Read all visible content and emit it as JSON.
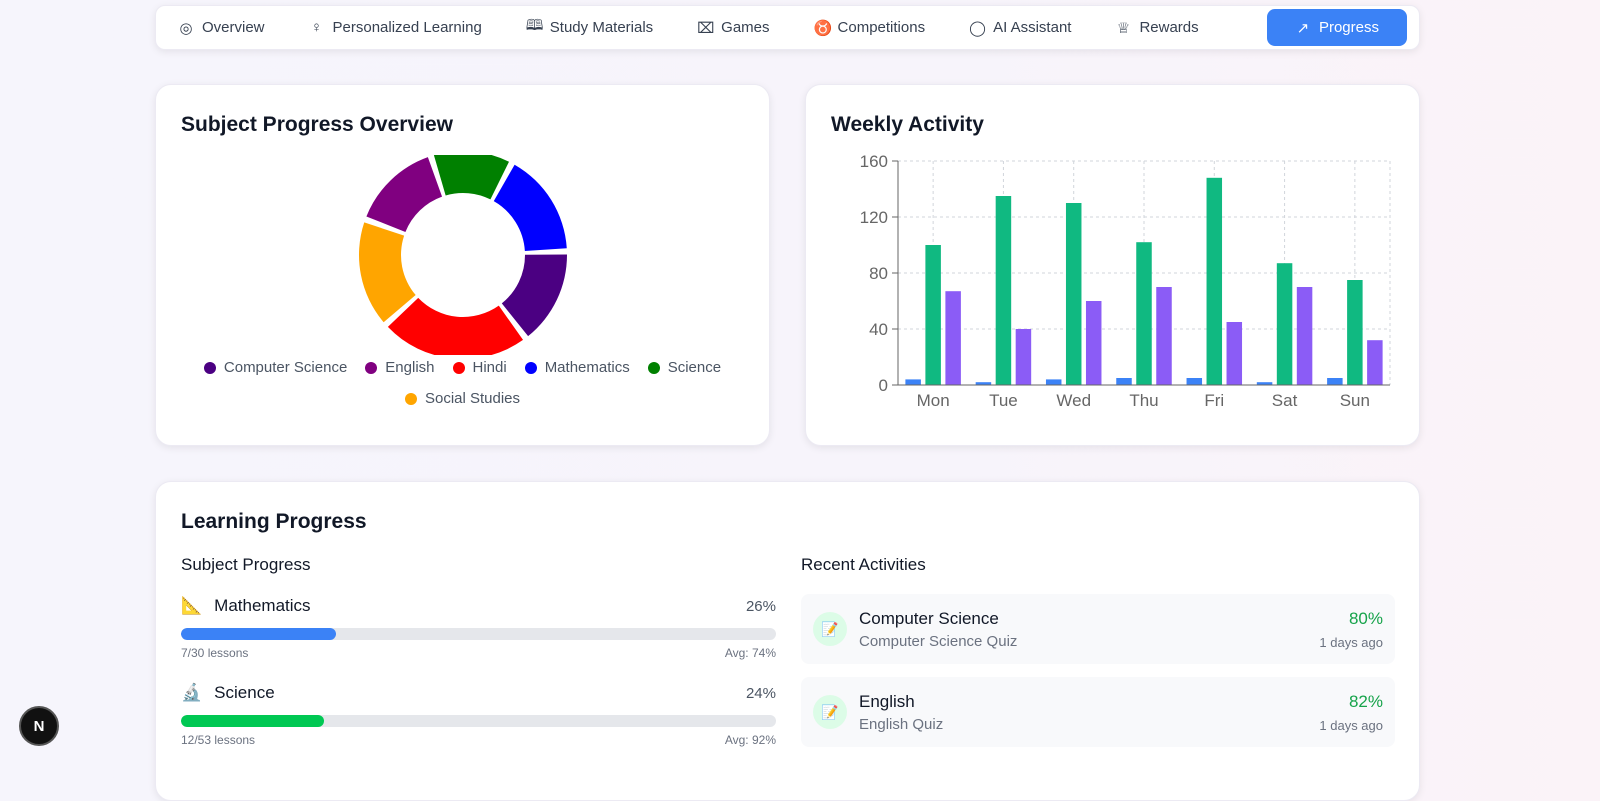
{
  "nav": {
    "tabs": [
      {
        "label": "Overview",
        "icon": "target-icon",
        "glyph": "◎"
      },
      {
        "label": "Personalized Learning",
        "icon": "lightbulb-icon",
        "glyph": "♀"
      },
      {
        "label": "Study Materials",
        "icon": "book-open-icon",
        "glyph": "🕮"
      },
      {
        "label": "Games",
        "icon": "gamepad-icon",
        "glyph": "⌧"
      },
      {
        "label": "Competitions",
        "icon": "medal-icon",
        "glyph": "♉"
      },
      {
        "label": "AI Assistant",
        "icon": "message-circle-icon",
        "glyph": "◯"
      },
      {
        "label": "Rewards",
        "icon": "trophy-icon",
        "glyph": "♕"
      },
      {
        "label": "Progress",
        "icon": "trending-up-icon",
        "glyph": "↗"
      }
    ]
  },
  "subject_overview": {
    "title": "Subject Progress Overview"
  },
  "weekly": {
    "title": "Weekly Activity"
  },
  "chart_data": [
    {
      "type": "pie",
      "title": "Subject Progress Overview",
      "donut": true,
      "slices": [
        {
          "name": "Mathematics",
          "value": 60,
          "color": "#0000ff"
        },
        {
          "name": "Computer Science",
          "value": 55,
          "color": "#4b0082"
        },
        {
          "name": "Hindi",
          "value": 85,
          "color": "#ff0000"
        },
        {
          "name": "Social Studies",
          "value": 62,
          "color": "#ffa500"
        },
        {
          "name": "English",
          "value": 52,
          "color": "#800080"
        },
        {
          "name": "Science",
          "value": 46,
          "color": "#008000"
        }
      ],
      "legend": [
        "Computer Science",
        "English",
        "Hindi",
        "Mathematics",
        "Science",
        "Social Studies"
      ],
      "legend_colors": [
        "#4b0082",
        "#800080",
        "#ff0000",
        "#0000ff",
        "#008000",
        "#ffa500"
      ],
      "legend_placement": "bottom"
    },
    {
      "type": "bar",
      "title": "Weekly Activity",
      "categories": [
        "Mon",
        "Tue",
        "Wed",
        "Thu",
        "Fri",
        "Sat",
        "Sun"
      ],
      "series": [
        {
          "color": "#3b82f6",
          "values": [
            4,
            2,
            4,
            5,
            5,
            2,
            5
          ]
        },
        {
          "color": "#10b981",
          "values": [
            100,
            135,
            130,
            102,
            148,
            87,
            75
          ]
        },
        {
          "color": "#8b5cf6",
          "values": [
            67,
            40,
            60,
            70,
            45,
            70,
            32
          ]
        }
      ],
      "ylim": [
        0,
        160
      ],
      "yticks": [
        "0",
        "40",
        "80",
        "120",
        "160"
      ],
      "grid": true
    }
  ],
  "learning": {
    "title": "Learning Progress",
    "subject_progress_label": "Subject Progress",
    "recent_label": "Recent Activities",
    "subjects": [
      {
        "icon": "📐",
        "name": "Mathematics",
        "percent": "26%",
        "progress": 26,
        "lessons": "7/30 lessons",
        "avg": "Avg: 74%",
        "color": "#3b82f6"
      },
      {
        "icon": "🔬",
        "name": "Science",
        "percent": "24%",
        "progress": 24,
        "lessons": "12/53 lessons",
        "avg": "Avg: 92%",
        "color": "#00c853"
      }
    ],
    "activities": [
      {
        "icon": "📝",
        "title": "Computer Science",
        "subtitle": "Computer Science Quiz",
        "score": "80%",
        "time": "1 days ago"
      },
      {
        "icon": "📝",
        "title": "English",
        "subtitle": "English Quiz",
        "score": "82%",
        "time": "1 days ago"
      }
    ]
  },
  "fab": {
    "label": "N"
  }
}
